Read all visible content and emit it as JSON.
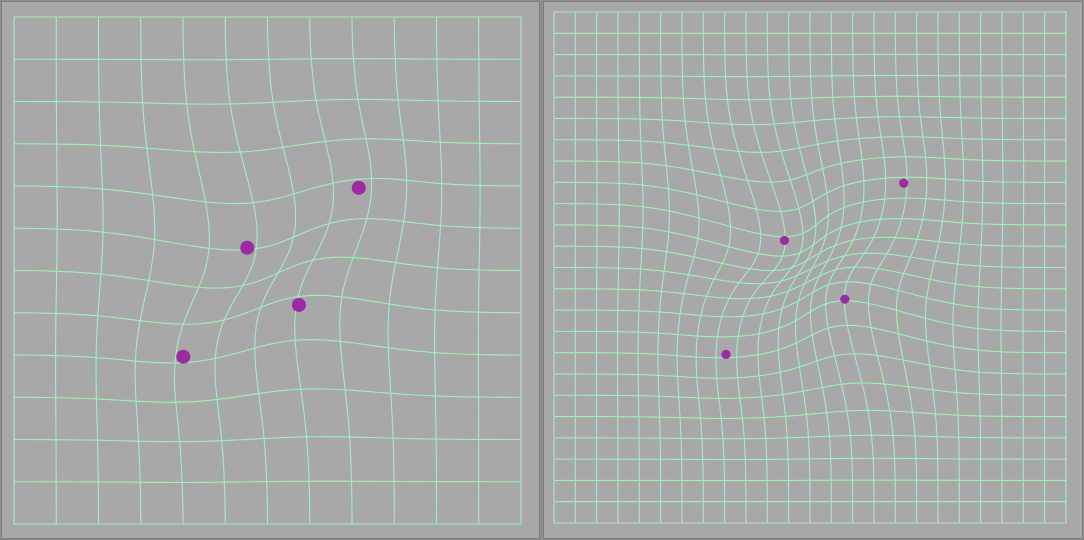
{
  "panels": [
    {
      "name": "left",
      "grid_divisions": 12,
      "control_points": [
        {
          "u": 0.46,
          "v": 0.455,
          "u_rest": 0.398,
          "v_rest": 0.41
        },
        {
          "u": 0.68,
          "v": 0.337,
          "u_rest": 0.642,
          "v_rest": 0.353
        },
        {
          "u": 0.562,
          "v": 0.568,
          "u_rest": 0.595,
          "v_rest": 0.605
        },
        {
          "u": 0.334,
          "v": 0.67,
          "u_rest": 0.353,
          "v_rest": 0.655
        }
      ],
      "show_control_points": true
    },
    {
      "name": "right",
      "grid_divisions": 24,
      "control_points": [
        {
          "u": 0.45,
          "v": 0.447,
          "u_rest": 0.373,
          "v_rest": 0.382
        },
        {
          "u": 0.683,
          "v": 0.335,
          "u_rest": 0.66,
          "v_rest": 0.345
        },
        {
          "u": 0.568,
          "v": 0.562,
          "u_rest": 0.626,
          "v_rest": 0.622
        },
        {
          "u": 0.336,
          "v": 0.67,
          "u_rest": 0.354,
          "v_rest": 0.66
        }
      ],
      "show_control_points": true
    }
  ],
  "colors": {
    "background": "#a8a8a8",
    "grid_line": "#9ef0be",
    "control_point": "#9e2aa3"
  }
}
